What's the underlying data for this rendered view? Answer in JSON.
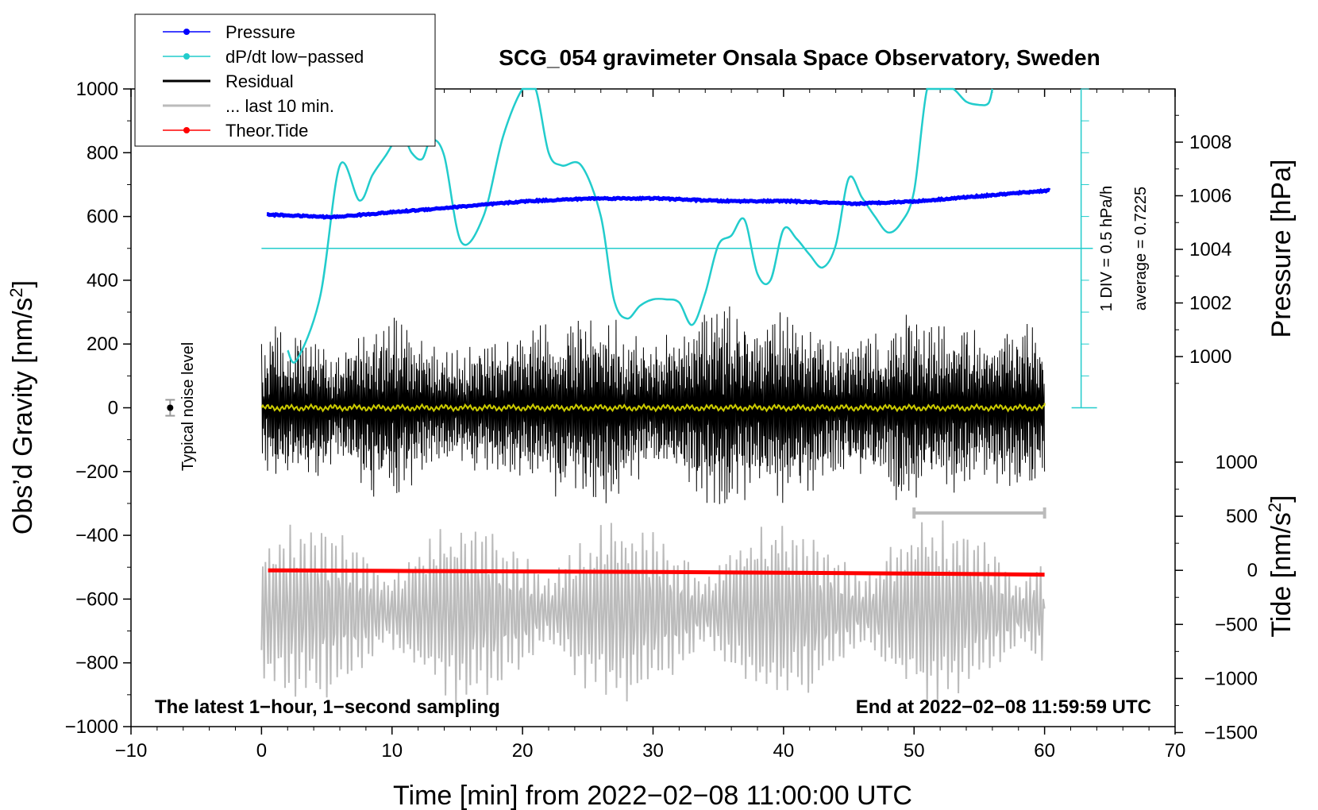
{
  "chart_data": {
    "type": "line",
    "title": "SCG_054 gravimeter Onsala Space Observatory, Sweden",
    "xlabel": "Time [min] from 2022−02−08 11:00:00 UTC",
    "ylabel_left": "Obs’d Gravity [nm/s",
    "ylabel_left_sup": "2",
    "ylabel_left_close": "]",
    "ylabel_right_pressure": "Pressure [hPa]",
    "ylabel_right_tide": "Tide [nm/s",
    "ylabel_right_tide_sup": "2",
    "ylabel_right_tide_close": "]",
    "xlim": [
      -10,
      70
    ],
    "ylim_left": [
      -1000,
      1000
    ],
    "x_ticks": [
      "−10",
      "0",
      "10",
      "20",
      "30",
      "40",
      "50",
      "60",
      "70"
    ],
    "y_ticks_left": [
      "1000",
      "800",
      "600",
      "400",
      "200",
      "0",
      "−200",
      "−400",
      "−600",
      "−800",
      "−1000"
    ],
    "pressure_ticks": [
      "1008",
      "1006",
      "1004",
      "1002",
      "1000"
    ],
    "tide_ticks": [
      "1000",
      "500",
      "0",
      "−500",
      "−1000",
      "−1500"
    ],
    "legend": [
      {
        "label": "Pressure",
        "color": "#0000ff",
        "marker": true
      },
      {
        "label": "dP/dt low−passed",
        "color": "#22cccc",
        "marker": true
      },
      {
        "label": "Residual",
        "color": "#000000",
        "marker": false
      },
      {
        "label": "... last 10 min.",
        "color": "#bbbbbb",
        "marker": false
      },
      {
        "label": "Theor.Tide",
        "color": "#ff0000",
        "marker": true
      }
    ],
    "annotations": {
      "noise": "Typical noise level",
      "bottom_left": "The latest 1−hour, 1−second sampling",
      "bottom_right": "End at 2022−02−08 11:59:59 UTC",
      "div_label": "1 DIV = 0.5 hPa/h",
      "average_label": "average = 0.7225"
    },
    "series": [
      {
        "name": "Pressure",
        "axis": "pressure_hPa",
        "x": [
          0,
          5,
          10,
          15,
          20,
          25,
          30,
          35,
          40,
          45,
          50,
          55,
          60
        ],
        "values": [
          1005.3,
          1005.2,
          1005.4,
          1005.6,
          1005.8,
          1005.9,
          1005.9,
          1005.8,
          1005.8,
          1005.7,
          1005.8,
          1006.0,
          1006.2
        ]
      },
      {
        "name": "dP/dt low-passed",
        "axis": "gravity_scale_nm_s2",
        "x": [
          2,
          2.7,
          4.5,
          6,
          7.5,
          8.5,
          9.5,
          10.7,
          11.5,
          12.3,
          13,
          14,
          15.3,
          17,
          18.5,
          20,
          21,
          22,
          23,
          24.5,
          26,
          27,
          28,
          29,
          30,
          31,
          32,
          33,
          34,
          35,
          36,
          37,
          38,
          39,
          40,
          41,
          42,
          43,
          44,
          45,
          46,
          47,
          48,
          49,
          50,
          51,
          52,
          53,
          54,
          55,
          55.7,
          56
        ],
        "values": [
          180,
          150,
          350,
          760,
          650,
          730,
          790,
          860,
          800,
          780,
          840,
          790,
          520,
          600,
          850,
          1000,
          1020,
          800,
          760,
          760,
          600,
          340,
          280,
          320,
          340,
          340,
          330,
          260,
          360,
          510,
          540,
          590,
          420,
          400,
          560,
          530,
          480,
          440,
          510,
          720,
          660,
          600,
          550,
          580,
          680,
          1000,
          1080,
          1020,
          960,
          950,
          955,
          1000
        ]
      },
      {
        "name": "Residual",
        "axis": "gravity_nm_s2",
        "x": [
          0,
          60
        ],
        "values": [
          200,
          -200
        ],
        "note": "1-second residual oscillating roughly between −350 and +380 nm/s² around 0"
      },
      {
        "name": "Theor.Tide",
        "axis": "tide_nm_s2",
        "x": [
          0.5,
          10,
          20,
          30,
          40,
          50,
          60
        ],
        "values": [
          0,
          -5,
          -10,
          -15,
          -22,
          -30,
          -40
        ]
      },
      {
        "name": "... last 10 min.",
        "axis": "gravity_nm_s2",
        "x": [
          0,
          60
        ],
        "values": [
          -760,
          -630
        ],
        "note": "last-10-minute residual drawn offset around −640 nm/s², amplitude up to ±300"
      }
    ],
    "noise_level": {
      "x": -7,
      "y": 0,
      "err": 25
    },
    "window_bar": {
      "x_start": 50,
      "x_end": 60,
      "y": -330
    }
  }
}
